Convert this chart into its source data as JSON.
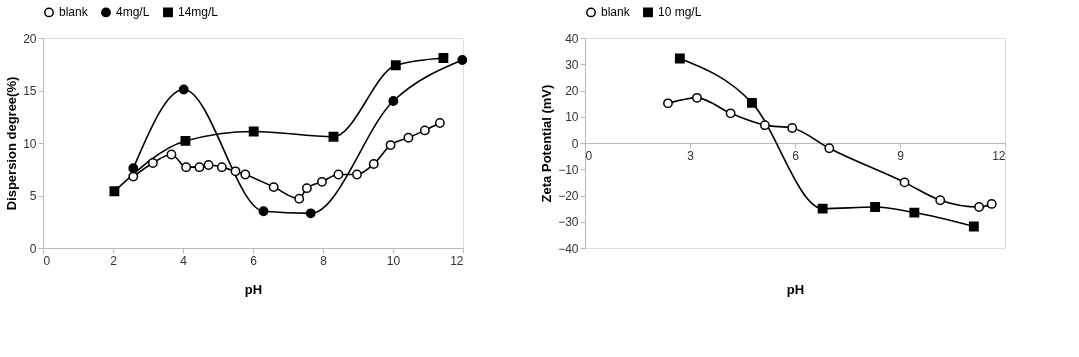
{
  "chart_data": [
    {
      "type": "line",
      "xlabel": "pH",
      "ylabel": "Dispersion degree(%)",
      "xlim": [
        0,
        12
      ],
      "xticks": [
        0,
        2,
        4,
        6,
        8,
        10,
        12
      ],
      "ylim": [
        0,
        20
      ],
      "yticks": [
        0,
        5,
        10,
        15,
        20
      ],
      "grid": false,
      "legend": "top",
      "line_style": "solid",
      "series": [
        {
          "name": "blank",
          "color": "#ffffff",
          "marker": "circle",
          "x": [
            2.58,
            3.14,
            3.67,
            4.09,
            4.47,
            4.73,
            5.11,
            5.5,
            5.78,
            6.59,
            7.32,
            7.54,
            7.97,
            8.44,
            8.97,
            9.45,
            9.93,
            10.44,
            10.91,
            11.34
          ],
          "values": [
            6.8,
            8.1,
            8.9,
            7.7,
            7.7,
            7.9,
            7.7,
            7.3,
            7.0,
            5.8,
            4.7,
            5.7,
            6.3,
            7.0,
            7.0,
            8.0,
            9.8,
            10.5,
            11.2,
            11.9
          ]
        },
        {
          "name": "4mg/L",
          "color": "#000000",
          "marker": "circle",
          "x": [
            2.58,
            4.02,
            6.3,
            7.65,
            10.01,
            11.98
          ],
          "values": [
            7.6,
            15.1,
            3.5,
            3.3,
            14.0,
            17.9
          ]
        },
        {
          "name": "14mg/L",
          "color": "#000000",
          "marker": "square",
          "x": [
            2.04,
            4.07,
            6.02,
            8.3,
            10.08,
            11.44
          ],
          "values": [
            5.4,
            10.2,
            11.1,
            10.6,
            17.4,
            18.1
          ]
        }
      ]
    },
    {
      "type": "line",
      "xlabel": "pH",
      "ylabel": "Zeta Potential (mV)",
      "xlim": [
        0,
        12
      ],
      "xticks": [
        0,
        3,
        6,
        9,
        12
      ],
      "ylim": [
        -40,
        40
      ],
      "yticks": [
        -40,
        -30,
        -20,
        -10,
        0,
        10,
        20,
        30,
        40
      ],
      "grid": false,
      "legend": "top",
      "line_style": "solid",
      "series": [
        {
          "name": "blank",
          "color": "#ffffff",
          "marker": "circle",
          "x": [
            2.37,
            3.2,
            4.16,
            5.14,
            5.92,
            6.98,
            9.13,
            10.15,
            11.26,
            11.62
          ],
          "values": [
            15.1,
            17.2,
            11.3,
            6.8,
            5.7,
            -2.0,
            -15.0,
            -21.8,
            -24.4,
            -23.2
          ]
        },
        {
          "name": "10 mg/L",
          "color": "#000000",
          "marker": "square",
          "x": [
            2.71,
            4.77,
            6.79,
            8.29,
            9.41,
            11.11
          ],
          "values": [
            32.2,
            15.3,
            -25.0,
            -24.4,
            -26.5,
            -31.8
          ]
        }
      ]
    }
  ]
}
